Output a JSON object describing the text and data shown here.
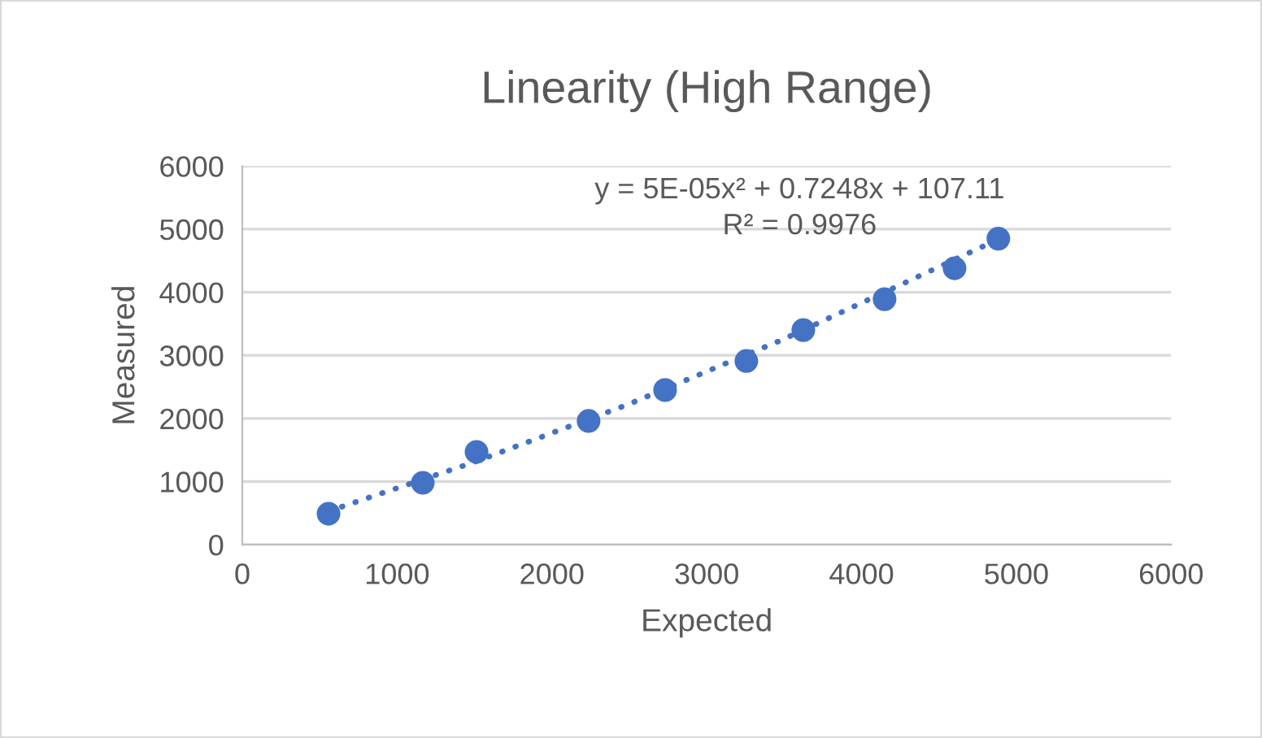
{
  "chart_data": {
    "type": "scatter",
    "title": "Linearity (High Range)",
    "xlabel": "Expected",
    "ylabel": "Measured",
    "series": [
      {
        "color": "#4472c4",
        "marker": "circle",
        "x": [
          557,
          1166,
          1513,
          2237,
          2731,
          3256,
          3624,
          4149,
          4601,
          4884
        ],
        "values": [
          490,
          980,
          1470,
          1960,
          2450,
          2910,
          3400,
          3890,
          4380,
          4850
        ]
      },
      {
        "type": "line",
        "color": "#4472c4",
        "marker": "none",
        "line_style": "dotted",
        "x": [
          557,
          1500,
          2500,
          3500,
          4884
        ],
        "values": [
          530,
          1310,
          2230,
          3260,
          4840
        ]
      }
    ],
    "xlim": [
      0,
      6000
    ],
    "xticks": [
      0,
      1000,
      2000,
      3000,
      4000,
      5000,
      6000
    ],
    "ylim": [
      0,
      6000
    ],
    "yticks": [
      0,
      1000,
      2000,
      3000,
      4000,
      5000,
      6000
    ],
    "grid": "y",
    "legend": false,
    "annotations": [
      "y = 5E-05x² + 0.7248x + 107.11",
      "R² = 0.9976"
    ]
  }
}
